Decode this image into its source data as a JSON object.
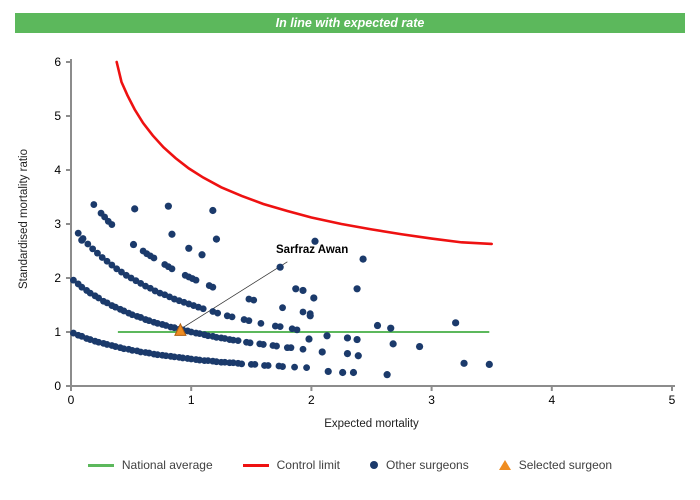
{
  "banner": {
    "text": "In line with expected rate",
    "bg_color": "#5cb85c"
  },
  "legend": {
    "items": [
      {
        "label": "National average",
        "swatch": "line",
        "color": "#5cb85c"
      },
      {
        "label": "Control limit",
        "swatch": "line",
        "color": "#ee1111"
      },
      {
        "label": "Other surgeons",
        "swatch": "dot",
        "color": "#1b3a6b"
      },
      {
        "label": "Selected surgeon",
        "swatch": "triangle",
        "color": "#ef8d22"
      }
    ]
  },
  "chart_data": {
    "type": "scatter",
    "title": "In line with expected rate",
    "xlabel": "Expected mortality",
    "ylabel": "Standardised mortality ratio",
    "xlim": [
      0,
      5
    ],
    "ylim": [
      0,
      6
    ],
    "x_ticks": [
      0,
      1,
      2,
      3,
      4,
      5
    ],
    "y_ticks": [
      0,
      1,
      2,
      3,
      4,
      5,
      6
    ],
    "grid": false,
    "legend_position": "bottom",
    "annotation": {
      "text": "Sarfraz Awan",
      "target": [
        0.91,
        1.03
      ],
      "line": [
        [
          1.8,
          2.3
        ],
        [
          0.93,
          1.08
        ]
      ]
    },
    "series": {
      "national_average": {
        "kind": "hline",
        "y": 1,
        "x_start": 0.39,
        "x_end": 3.48,
        "color": "#5cb85c"
      },
      "control_limit": {
        "kind": "curve",
        "color": "#ee1111",
        "points": [
          [
            0.38,
            6.0
          ],
          [
            0.42,
            5.63
          ],
          [
            0.47,
            5.38
          ],
          [
            0.53,
            5.12
          ],
          [
            0.6,
            4.87
          ],
          [
            0.68,
            4.64
          ],
          [
            0.77,
            4.42
          ],
          [
            0.87,
            4.22
          ],
          [
            0.98,
            4.03
          ],
          [
            1.1,
            3.86
          ],
          [
            1.25,
            3.68
          ],
          [
            1.42,
            3.52
          ],
          [
            1.6,
            3.37
          ],
          [
            1.8,
            3.24
          ],
          [
            2.0,
            3.12
          ],
          [
            2.25,
            3.0
          ],
          [
            2.5,
            2.9
          ],
          [
            2.75,
            2.81
          ],
          [
            3.0,
            2.73
          ],
          [
            3.25,
            2.66
          ],
          [
            3.5,
            2.63
          ]
        ]
      },
      "other_surgeons": {
        "kind": "points",
        "color": "#1b3a6b",
        "bands": [
          [
            [
              0.02,
              0.98
            ],
            [
              0.06,
              0.94
            ],
            [
              0.09,
              0.92
            ],
            [
              0.13,
              0.88
            ],
            [
              0.16,
              0.86
            ],
            [
              0.2,
              0.83
            ],
            [
              0.23,
              0.81
            ],
            [
              0.27,
              0.79
            ],
            [
              0.3,
              0.77
            ],
            [
              0.34,
              0.75
            ],
            [
              0.37,
              0.73
            ],
            [
              0.41,
              0.71
            ],
            [
              0.44,
              0.69
            ],
            [
              0.48,
              0.68
            ],
            [
              0.51,
              0.66
            ],
            [
              0.55,
              0.65
            ],
            [
              0.58,
              0.63
            ],
            [
              0.62,
              0.62
            ],
            [
              0.65,
              0.61
            ],
            [
              0.69,
              0.59
            ],
            [
              0.72,
              0.58
            ],
            [
              0.76,
              0.57
            ],
            [
              0.79,
              0.56
            ],
            [
              0.83,
              0.55
            ],
            [
              0.86,
              0.54
            ],
            [
              0.9,
              0.53
            ],
            [
              0.93,
              0.52
            ],
            [
              0.97,
              0.51
            ],
            [
              1.0,
              0.5
            ],
            [
              1.04,
              0.49
            ],
            [
              1.07,
              0.48
            ],
            [
              1.11,
              0.47
            ],
            [
              1.14,
              0.47
            ],
            [
              1.18,
              0.46
            ],
            [
              1.21,
              0.45
            ],
            [
              1.25,
              0.44
            ],
            [
              1.28,
              0.44
            ],
            [
              1.32,
              0.43
            ],
            [
              1.35,
              0.43
            ],
            [
              1.39,
              0.42
            ],
            [
              1.42,
              0.41
            ],
            [
              1.5,
              0.4
            ],
            [
              1.53,
              0.4
            ],
            [
              1.61,
              0.38
            ],
            [
              1.64,
              0.38
            ],
            [
              1.73,
              0.37
            ],
            [
              1.76,
              0.36
            ],
            [
              1.86,
              0.35
            ],
            [
              1.96,
              0.34
            ]
          ],
          [
            [
              0.02,
              1.96
            ],
            [
              0.06,
              1.89
            ],
            [
              0.09,
              1.83
            ],
            [
              0.13,
              1.77
            ],
            [
              0.16,
              1.72
            ],
            [
              0.2,
              1.67
            ],
            [
              0.23,
              1.63
            ],
            [
              0.27,
              1.57
            ],
            [
              0.3,
              1.54
            ],
            [
              0.34,
              1.49
            ],
            [
              0.37,
              1.46
            ],
            [
              0.41,
              1.42
            ],
            [
              0.44,
              1.39
            ],
            [
              0.48,
              1.35
            ],
            [
              0.51,
              1.32
            ],
            [
              0.55,
              1.29
            ],
            [
              0.58,
              1.27
            ],
            [
              0.62,
              1.23
            ],
            [
              0.65,
              1.21
            ],
            [
              0.69,
              1.18
            ],
            [
              0.72,
              1.16
            ],
            [
              0.76,
              1.14
            ],
            [
              0.79,
              1.12
            ],
            [
              0.83,
              1.09
            ],
            [
              0.86,
              1.08
            ],
            [
              0.9,
              1.05
            ],
            [
              0.93,
              1.04
            ],
            [
              0.97,
              1.02
            ],
            [
              1.0,
              1.0
            ],
            [
              1.04,
              0.98
            ],
            [
              1.07,
              0.97
            ],
            [
              1.11,
              0.95
            ],
            [
              1.14,
              0.93
            ],
            [
              1.18,
              0.92
            ],
            [
              1.21,
              0.9
            ],
            [
              1.25,
              0.89
            ],
            [
              1.28,
              0.88
            ],
            [
              1.32,
              0.86
            ],
            [
              1.35,
              0.85
            ],
            [
              1.39,
              0.84
            ],
            [
              1.46,
              0.81
            ],
            [
              1.49,
              0.8
            ],
            [
              1.57,
              0.78
            ],
            [
              1.6,
              0.77
            ],
            [
              1.68,
              0.75
            ],
            [
              1.71,
              0.74
            ],
            [
              1.8,
              0.71
            ],
            [
              1.83,
              0.71
            ],
            [
              1.93,
              0.68
            ]
          ],
          [
            [
              0.06,
              2.83
            ],
            [
              0.1,
              2.73
            ],
            [
              0.14,
              2.63
            ],
            [
              0.18,
              2.54
            ],
            [
              0.22,
              2.46
            ],
            [
              0.26,
              2.38
            ],
            [
              0.3,
              2.31
            ],
            [
              0.34,
              2.24
            ],
            [
              0.38,
              2.17
            ],
            [
              0.42,
              2.11
            ],
            [
              0.46,
              2.05
            ],
            [
              0.5,
              2.0
            ],
            [
              0.54,
              1.95
            ],
            [
              0.58,
              1.9
            ],
            [
              0.62,
              1.85
            ],
            [
              0.66,
              1.81
            ],
            [
              0.7,
              1.76
            ],
            [
              0.74,
              1.72
            ],
            [
              0.78,
              1.69
            ],
            [
              0.82,
              1.65
            ],
            [
              0.86,
              1.61
            ],
            [
              0.9,
              1.58
            ],
            [
              0.94,
              1.55
            ],
            [
              0.98,
              1.52
            ],
            [
              1.02,
              1.49
            ],
            [
              1.06,
              1.46
            ],
            [
              1.1,
              1.43
            ],
            [
              1.18,
              1.38
            ],
            [
              1.22,
              1.35
            ],
            [
              1.3,
              1.3
            ],
            [
              1.34,
              1.28
            ],
            [
              1.44,
              1.23
            ],
            [
              1.48,
              1.21
            ],
            [
              1.58,
              1.16
            ],
            [
              1.7,
              1.11
            ],
            [
              1.74,
              1.1
            ],
            [
              1.84,
              1.06
            ],
            [
              1.88,
              1.04
            ]
          ],
          [
            [
              0.19,
              3.36
            ],
            [
              0.25,
              3.2
            ],
            [
              0.28,
              3.13
            ],
            [
              0.31,
              3.05
            ],
            [
              0.34,
              2.99
            ],
            [
              0.6,
              2.5
            ],
            [
              0.63,
              2.45
            ],
            [
              0.66,
              2.41
            ],
            [
              0.69,
              2.37
            ],
            [
              0.78,
              2.25
            ],
            [
              0.81,
              2.21
            ],
            [
              0.84,
              2.17
            ],
            [
              0.95,
              2.05
            ],
            [
              0.98,
              2.02
            ],
            [
              1.01,
              1.99
            ],
            [
              1.04,
              1.96
            ],
            [
              1.15,
              1.86
            ],
            [
              1.18,
              1.83
            ],
            [
              1.48,
              1.61
            ],
            [
              1.52,
              1.59
            ],
            [
              1.76,
              1.45
            ],
            [
              1.93,
              1.37
            ],
            [
              1.99,
              1.34
            ]
          ]
        ],
        "points": [
          [
            0.53,
            3.28
          ],
          [
            0.81,
            3.33
          ],
          [
            1.18,
            3.25
          ],
          [
            0.09,
            2.7
          ],
          [
            0.52,
            2.62
          ],
          [
            0.84,
            2.81
          ],
          [
            0.98,
            2.55
          ],
          [
            1.09,
            2.43
          ],
          [
            1.21,
            2.72
          ],
          [
            1.74,
            2.2
          ],
          [
            2.03,
            2.68
          ],
          [
            2.43,
            2.35
          ],
          [
            1.87,
            1.8
          ],
          [
            1.93,
            1.77
          ],
          [
            2.02,
            1.63
          ],
          [
            2.38,
            1.8
          ],
          [
            1.99,
            1.3
          ],
          [
            2.55,
            1.12
          ],
          [
            2.66,
            1.07
          ],
          [
            3.2,
            1.17
          ],
          [
            1.98,
            0.87
          ],
          [
            2.13,
            0.93
          ],
          [
            2.3,
            0.89
          ],
          [
            2.38,
            0.86
          ],
          [
            2.09,
            0.63
          ],
          [
            2.3,
            0.6
          ],
          [
            2.39,
            0.56
          ],
          [
            2.68,
            0.78
          ],
          [
            2.9,
            0.73
          ],
          [
            2.14,
            0.27
          ],
          [
            2.26,
            0.25
          ],
          [
            2.35,
            0.25
          ],
          [
            2.63,
            0.21
          ],
          [
            3.27,
            0.42
          ],
          [
            3.48,
            0.4
          ]
        ]
      },
      "selected_surgeon": {
        "kind": "triangle",
        "color": "#ef8d22",
        "edge_color": "#b05e0f",
        "points": [
          [
            0.91,
            1.03
          ]
        ]
      }
    }
  }
}
